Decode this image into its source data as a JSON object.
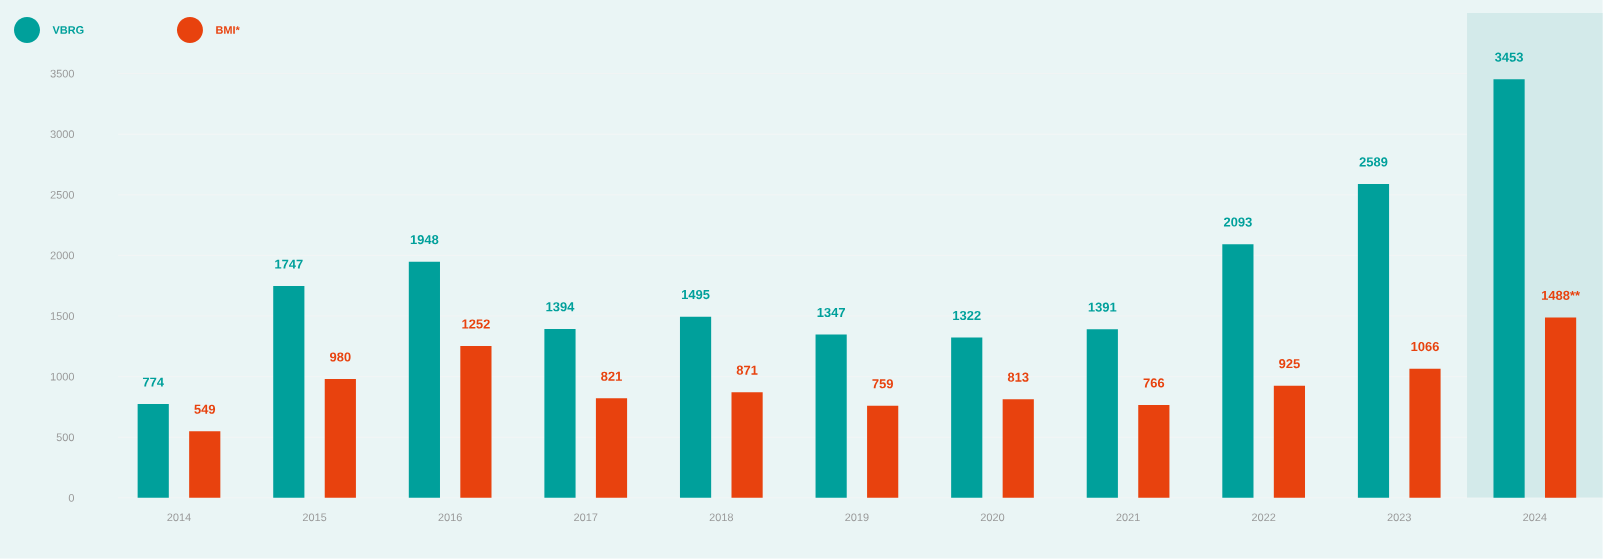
{
  "chart_data": {
    "type": "bar",
    "categories": [
      "2014",
      "2015",
      "2016",
      "2017",
      "2018",
      "2019",
      "2020",
      "2021",
      "2022",
      "2023",
      "2024"
    ],
    "series": [
      {
        "name": "VBRG",
        "color": "#00a09b",
        "values": [
          774,
          1747,
          1948,
          1394,
          1495,
          1347,
          1322,
          1391,
          2093,
          2589,
          3453
        ],
        "value_labels": [
          "774",
          "1747",
          "1948",
          "1394",
          "1495",
          "1347",
          "1322",
          "1391",
          "2093",
          "2589",
          "3453"
        ]
      },
      {
        "name": "BMI*",
        "color": "#e8420e",
        "values": [
          549,
          980,
          1252,
          821,
          871,
          759,
          813,
          766,
          925,
          1066,
          1488
        ],
        "value_labels": [
          "549",
          "980",
          "1252",
          "821",
          "871",
          "759",
          "813",
          "766",
          "925",
          "1066",
          "1488**"
        ]
      }
    ],
    "ylim": [
      0,
      4000
    ],
    "yticks": [
      0,
      500,
      1000,
      1500,
      2000,
      2500,
      3000,
      3500
    ],
    "grid": "y",
    "legend": "top left",
    "bands": [
      {
        "axis": "x",
        "from": "2024",
        "to": "2024",
        "color": "#d3eaea"
      }
    ]
  }
}
